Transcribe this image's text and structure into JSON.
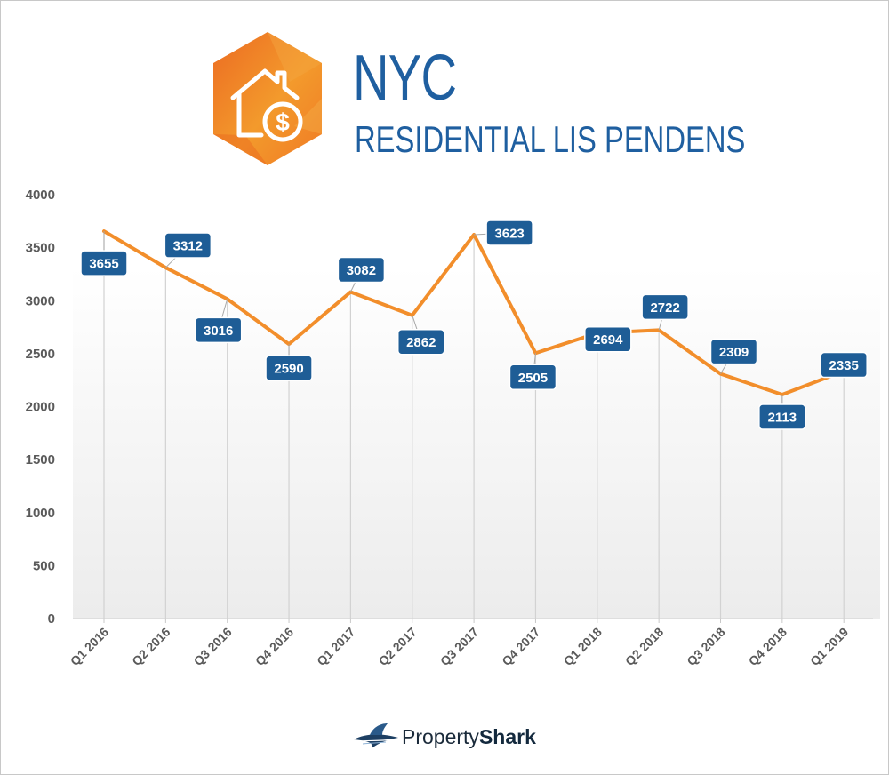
{
  "header": {
    "title": "NYC",
    "subtitle": "RESIDENTIAL LIS PENDENS",
    "icon": "house-dollar-icon"
  },
  "footer": {
    "brand_regular": "Property",
    "brand_bold": "Shark",
    "icon": "shark-logo-icon"
  },
  "colors": {
    "line": "#f28e2b",
    "label_bg": "#1e5d96",
    "title": "#1f5fa0",
    "hex_orange": "#f08a2a"
  },
  "chart_data": {
    "type": "line",
    "title": "",
    "xlabel": "",
    "ylabel": "",
    "categories": [
      "Q1 2016",
      "Q2 2016",
      "Q3 2016",
      "Q4 2016",
      "Q1 2017",
      "Q2 2017",
      "Q3 2017",
      "Q4 2017",
      "Q1 2018",
      "Q2 2018",
      "Q3 2018",
      "Q4 2018",
      "Q1 2019"
    ],
    "values": [
      3655,
      3312,
      3016,
      2590,
      3082,
      2862,
      3623,
      2505,
      2694,
      2722,
      2309,
      2113,
      2335
    ],
    "ylim": [
      0,
      4000
    ],
    "yticks": [
      0,
      500,
      1000,
      1500,
      2000,
      2500,
      3000,
      3500,
      4000
    ],
    "grid": false,
    "data_labels": true,
    "legend": "none"
  }
}
